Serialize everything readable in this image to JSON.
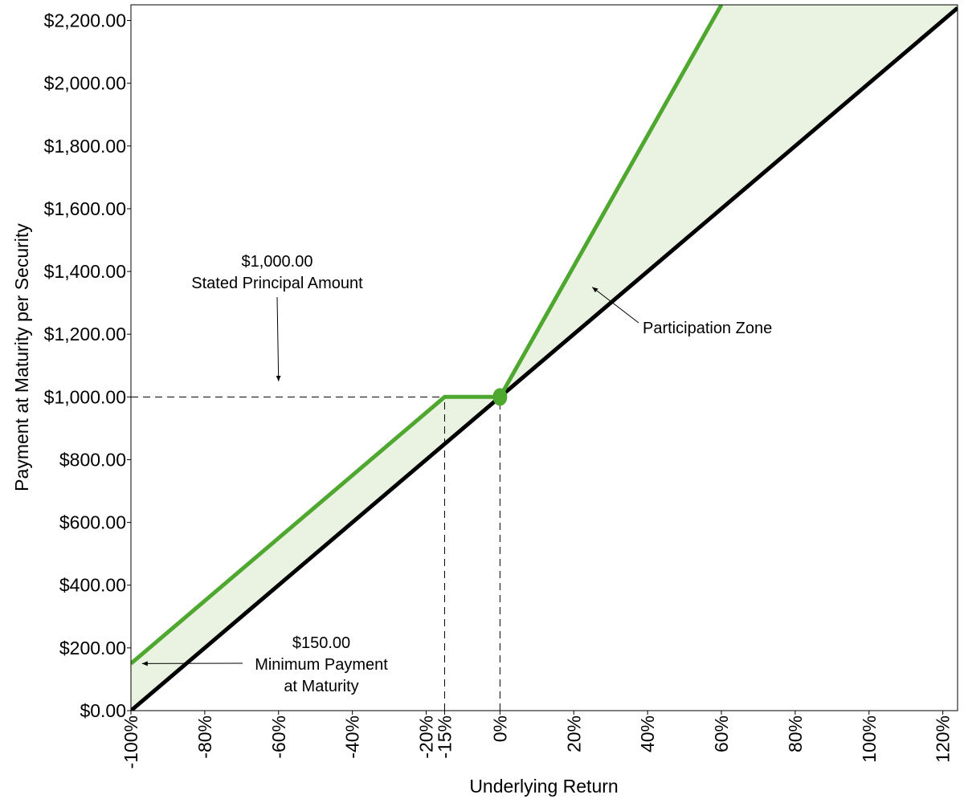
{
  "chart_data": {
    "type": "line",
    "xlabel": "Underlying Return",
    "ylabel": "Payment at Maturity per Security",
    "xlim": [
      -100,
      124
    ],
    "ylim": [
      0,
      2250
    ],
    "x_ticks": [
      -100,
      -80,
      -60,
      -40,
      -20,
      -15,
      0,
      20,
      40,
      60,
      80,
      100,
      120
    ],
    "x_tick_labels": [
      "-100%",
      "-80%",
      "-60%",
      "-40%",
      "-20%",
      "-15%",
      "0%",
      "20%",
      "40%",
      "60%",
      "80%",
      "100%",
      "120%"
    ],
    "y_ticks": [
      0,
      200,
      400,
      600,
      800,
      1000,
      1200,
      1400,
      1600,
      1800,
      2000,
      2200
    ],
    "y_tick_labels": [
      "$0.00",
      "$200.00",
      "$400.00",
      "$600.00",
      "$800.00",
      "$1,000.00",
      "$1,200.00",
      "$1,400.00",
      "$1,600.00",
      "$1,800.00",
      "$2,000.00",
      "$2,200.00"
    ],
    "grid": false,
    "series": [
      {
        "key": "security",
        "color": "#4ea72e",
        "points": [
          [
            -100,
            150
          ],
          [
            -15,
            1000
          ],
          [
            0,
            1000
          ],
          [
            60,
            2250
          ]
        ]
      },
      {
        "key": "underlying",
        "color": "#000000",
        "points": [
          [
            -100,
            0
          ],
          [
            124,
            2240
          ]
        ]
      }
    ],
    "shaded_color": "#eaf3e1",
    "marker": {
      "x": 0,
      "y": 1000,
      "color": "#4ea72e"
    },
    "reference_lines": [
      {
        "type": "horizontal",
        "y": 1000,
        "x_from": -100,
        "x_to": -15
      },
      {
        "type": "vertical",
        "x": -15,
        "y_from": 0,
        "y_to": 1000
      },
      {
        "type": "vertical",
        "x": 0,
        "y_from": 0,
        "y_to": 1000
      }
    ],
    "annotations": [
      {
        "key": "principal",
        "lines": [
          "$1,000.00",
          "Stated Principal Amount"
        ],
        "arrow_to": [
          -60,
          1050
        ]
      },
      {
        "key": "participation",
        "lines": [
          "Participation Zone"
        ],
        "arrow_to": [
          25,
          1350
        ]
      },
      {
        "key": "minimum",
        "lines": [
          "$150.00",
          "Minimum Payment",
          "at Maturity"
        ],
        "arrow_to": [
          -97,
          150
        ]
      }
    ]
  }
}
